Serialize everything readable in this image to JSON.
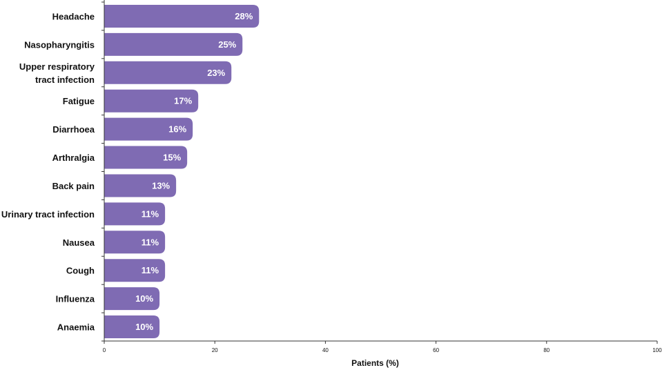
{
  "chart_data": {
    "type": "bar",
    "orientation": "horizontal",
    "categories": [
      [
        "Headache"
      ],
      [
        "Nasopharyngitis"
      ],
      [
        "Upper respiratory",
        "tract infection"
      ],
      [
        "Fatigue"
      ],
      [
        "Diarrhoea"
      ],
      [
        "Arthralgia"
      ],
      [
        "Back pain"
      ],
      [
        "Urinary tract infection"
      ],
      [
        "Nausea"
      ],
      [
        "Cough"
      ],
      [
        "Influenza"
      ],
      [
        "Anaemia"
      ]
    ],
    "values": [
      28,
      25,
      23,
      17,
      16,
      15,
      13,
      11,
      11,
      11,
      10,
      10
    ],
    "value_labels": [
      "28%",
      "25%",
      "23%",
      "17%",
      "16%",
      "15%",
      "13%",
      "11%",
      "11%",
      "11%",
      "10%",
      "10%"
    ],
    "xlabel": "Patients (%)",
    "xlim": [
      0,
      100
    ],
    "xticks": [
      0,
      20,
      40,
      60,
      80,
      100
    ],
    "bar_color": "#7f6bb3",
    "grid": false
  }
}
